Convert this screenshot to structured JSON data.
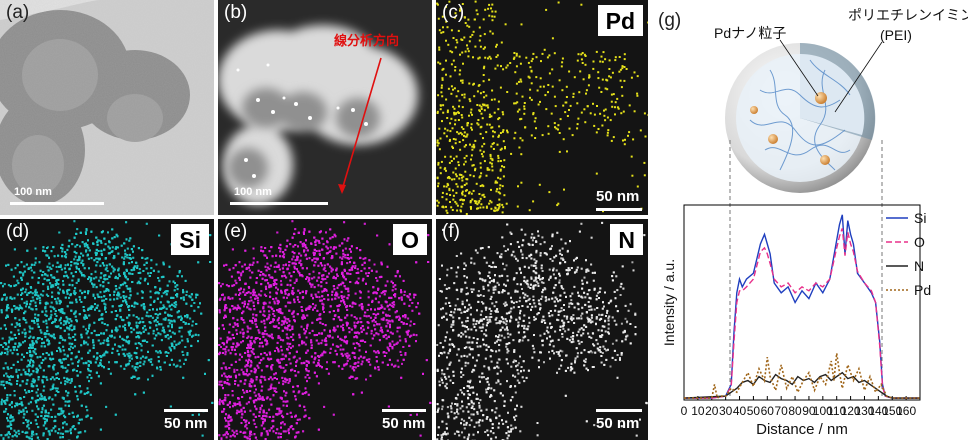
{
  "panels": {
    "a": {
      "label": "(a)",
      "scale": "100 nm"
    },
    "b": {
      "label": "(b)",
      "scale": "100 nm",
      "annotation": "線分析方向"
    },
    "c": {
      "label": "(c)",
      "element": "Pd",
      "scale": "50 nm"
    },
    "d": {
      "label": "(d)",
      "element": "Si",
      "scale": "50 nm"
    },
    "e": {
      "label": "(e)",
      "element": "O",
      "scale": "50 nm"
    },
    "f": {
      "label": "(f)",
      "element": "N",
      "scale": "50 nm"
    },
    "g": {
      "label": "(g)",
      "callout_pd": "Pdナノ粒子",
      "callout_pei_1": "ポリエチレンイミン",
      "callout_pei_2": "(PEI)"
    }
  },
  "colors": {
    "Si": "#1f3fbf",
    "O": "#e8308a",
    "N": "#222222",
    "Pd": "#a0661a",
    "map_pd": "#e6e21a",
    "map_si": "#20c8c8",
    "map_o": "#e020e0",
    "map_n": "#f0f0f0"
  },
  "chart_data": {
    "type": "line",
    "xlabel": "Distance / nm",
    "ylabel": "Intensity / a.u.",
    "xlim": [
      0,
      170
    ],
    "x_ticks": [
      0,
      10,
      20,
      30,
      40,
      50,
      60,
      70,
      80,
      90,
      100,
      110,
      120,
      130,
      140,
      150,
      160
    ],
    "x_tick_labels": [
      "0",
      "10",
      "20",
      "30",
      "40",
      "50",
      "60",
      "70",
      "80",
      "90",
      "100",
      "110",
      "120",
      "130",
      "140",
      "150",
      "160"
    ],
    "ylim": [
      0,
      1
    ],
    "legend_position": "top-right",
    "series": [
      {
        "name": "Si",
        "style": "solid",
        "x": [
          0,
          20,
          30,
          34,
          36,
          38,
          40,
          42,
          45,
          50,
          55,
          58,
          60,
          62,
          65,
          70,
          75,
          80,
          85,
          90,
          95,
          100,
          105,
          110,
          112,
          114,
          116,
          118,
          120,
          122,
          125,
          130,
          135,
          138,
          141,
          143,
          145,
          150,
          160,
          170
        ],
        "y": [
          0.01,
          0.01,
          0.02,
          0.08,
          0.35,
          0.55,
          0.62,
          0.58,
          0.62,
          0.65,
          0.8,
          0.85,
          0.8,
          0.75,
          0.6,
          0.55,
          0.58,
          0.5,
          0.56,
          0.52,
          0.6,
          0.55,
          0.62,
          0.82,
          0.9,
          0.95,
          0.75,
          0.92,
          0.85,
          0.8,
          0.65,
          0.6,
          0.55,
          0.5,
          0.3,
          0.08,
          0.02,
          0.01,
          0.01,
          0.01
        ]
      },
      {
        "name": "O",
        "style": "dashed",
        "x": [
          0,
          20,
          30,
          34,
          36,
          38,
          40,
          42,
          45,
          50,
          55,
          58,
          60,
          62,
          65,
          70,
          75,
          80,
          85,
          90,
          95,
          100,
          105,
          110,
          112,
          114,
          116,
          118,
          120,
          122,
          125,
          130,
          135,
          138,
          141,
          143,
          145,
          150,
          160,
          170
        ],
        "y": [
          0.01,
          0.01,
          0.02,
          0.07,
          0.3,
          0.5,
          0.56,
          0.56,
          0.58,
          0.62,
          0.76,
          0.78,
          0.75,
          0.7,
          0.62,
          0.58,
          0.6,
          0.55,
          0.58,
          0.56,
          0.6,
          0.58,
          0.62,
          0.78,
          0.84,
          0.88,
          0.74,
          0.86,
          0.8,
          0.76,
          0.66,
          0.6,
          0.56,
          0.5,
          0.28,
          0.07,
          0.02,
          0.01,
          0.01,
          0.01
        ]
      },
      {
        "name": "N",
        "style": "solid",
        "x": [
          0,
          30,
          34,
          38,
          42,
          46,
          50,
          54,
          58,
          62,
          66,
          70,
          74,
          78,
          82,
          86,
          90,
          94,
          98,
          102,
          106,
          110,
          114,
          118,
          122,
          126,
          130,
          134,
          138,
          142,
          146,
          150,
          170
        ],
        "y": [
          0.01,
          0.02,
          0.04,
          0.06,
          0.09,
          0.1,
          0.08,
          0.12,
          0.1,
          0.09,
          0.13,
          0.11,
          0.1,
          0.08,
          0.12,
          0.1,
          0.11,
          0.09,
          0.12,
          0.13,
          0.1,
          0.12,
          0.14,
          0.11,
          0.12,
          0.09,
          0.1,
          0.08,
          0.06,
          0.04,
          0.02,
          0.01,
          0.01
        ]
      },
      {
        "name": "Pd",
        "style": "dotted",
        "x": [
          0,
          20,
          22,
          24,
          26,
          30,
          34,
          38,
          42,
          46,
          50,
          54,
          58,
          60,
          62,
          66,
          70,
          74,
          78,
          82,
          86,
          90,
          94,
          98,
          102,
          106,
          108,
          110,
          112,
          114,
          118,
          122,
          126,
          130,
          134,
          138,
          142,
          146,
          150,
          170
        ],
        "y": [
          0.01,
          0.01,
          0.08,
          0.01,
          0.02,
          0.02,
          0.06,
          0.04,
          0.09,
          0.14,
          0.07,
          0.16,
          0.1,
          0.22,
          0.12,
          0.05,
          0.18,
          0.06,
          0.12,
          0.04,
          0.1,
          0.14,
          0.05,
          0.12,
          0.08,
          0.2,
          0.1,
          0.24,
          0.14,
          0.06,
          0.18,
          0.1,
          0.16,
          0.05,
          0.12,
          0.04,
          0.08,
          0.02,
          0.01,
          0.01
        ]
      }
    ]
  }
}
